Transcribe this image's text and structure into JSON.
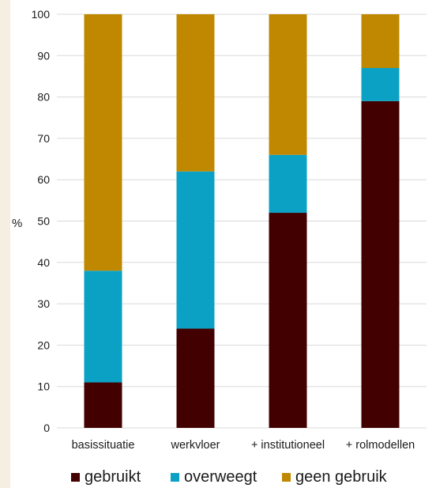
{
  "chart_data": {
    "type": "bar",
    "stacked": true,
    "title": "",
    "xlabel": "",
    "ylabel": "%",
    "ylim": [
      0,
      100
    ],
    "yticks": [
      0,
      10,
      20,
      30,
      40,
      50,
      60,
      70,
      80,
      90,
      100
    ],
    "grid": true,
    "legend_position": "bottom",
    "categories": [
      "basissituatie",
      "werkvloer",
      "+ institutioneel",
      "+ rolmodellen"
    ],
    "series": [
      {
        "name": "gebruikt",
        "color": "#420000",
        "values": [
          11,
          24,
          52,
          79
        ]
      },
      {
        "name": "overweegt",
        "color": "#0aa1c5",
        "values": [
          27,
          38,
          14,
          8
        ]
      },
      {
        "name": "geen gebruik",
        "color": "#bf8800",
        "values": [
          62,
          38,
          34,
          13
        ]
      }
    ]
  }
}
